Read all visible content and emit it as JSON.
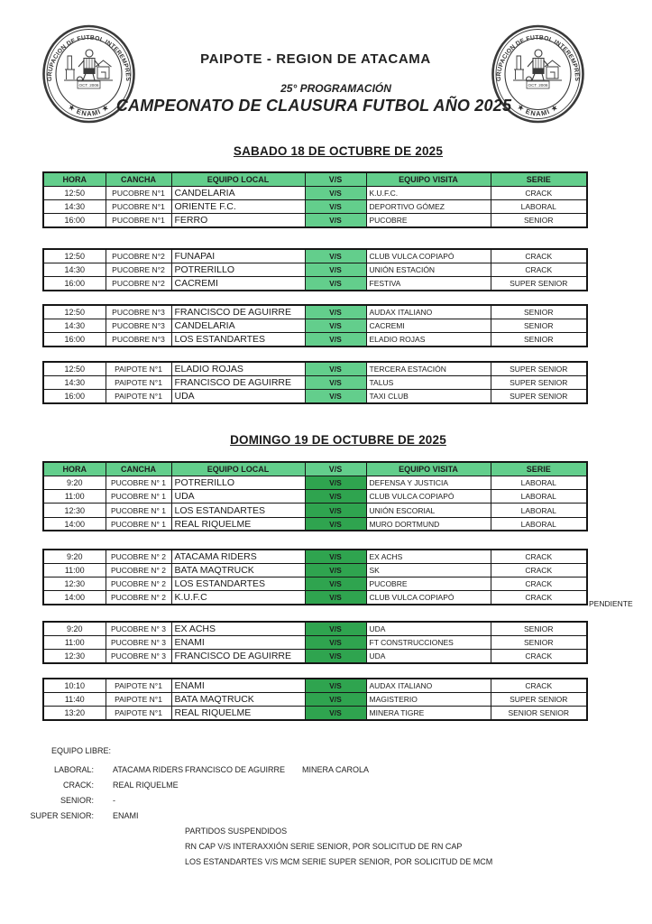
{
  "header": {
    "title": "PAIPOTE - REGION DE ATACAMA",
    "subtitle": "25° PROGRAMACIÓN",
    "championship": "CAMPEONATO DE CLAUSURA FUTBOL AÑO 2025",
    "logo": {
      "ring_text": "AGRUPACION DE FUTBOL INTEREMPRESA",
      "bottom_text": "★ ENAMI ★",
      "date_text": "OCT. 2006"
    }
  },
  "table_headers": [
    "HORA",
    "CANCHA",
    "EQUIPO LOCAL",
    "V/S",
    "EQUIPO VISITA",
    "SERIE"
  ],
  "days": [
    {
      "title": "SABADO 18 DE OCTUBRE DE 2025",
      "tables": [
        {
          "rows": [
            {
              "hora": "12:50",
              "cancha": "PUCOBRE N°1",
              "local": "CANDELARIA",
              "vs": "V/S",
              "visita": "K.U.F.C.",
              "serie": "CRACK"
            },
            {
              "hora": "14:30",
              "cancha": "PUCOBRE N°1",
              "local": "ORIENTE F.C.",
              "vs": "V/S",
              "visita": "DEPORTIVO GÓMEZ",
              "serie": "LABORAL"
            },
            {
              "hora": "16:00",
              "cancha": "PUCOBRE N°1",
              "local": "FERRO",
              "vs": "V/S",
              "visita": "PUCOBRE",
              "serie": "SENIOR"
            }
          ]
        },
        {
          "rows": [
            {
              "hora": "12:50",
              "cancha": "PUCOBRE N°2",
              "local": "FUNAPAI",
              "vs": "V/S",
              "visita": "CLUB VULCA COPIAPÓ",
              "serie": "CRACK"
            },
            {
              "hora": "14:30",
              "cancha": "PUCOBRE N°2",
              "local": "POTRERILLO",
              "vs": "V/S",
              "visita": "UNIÓN ESTACIÓN",
              "serie": "CRACK"
            },
            {
              "hora": "16:00",
              "cancha": "PUCOBRE N°2",
              "local": "CACREMI",
              "vs": "V/S",
              "visita": "FESTIVA",
              "serie": "SUPER SENIOR"
            }
          ]
        },
        {
          "rows": [
            {
              "hora": "12:50",
              "cancha": "PUCOBRE N°3",
              "local": "FRANCISCO DE AGUIRRE",
              "vs": "V/S",
              "visita": "AUDAX ITALIANO",
              "serie": "SENIOR"
            },
            {
              "hora": "14:30",
              "cancha": "PUCOBRE N°3",
              "local": "CANDELARIA",
              "vs": "V/S",
              "visita": "CACREMI",
              "serie": "SENIOR"
            },
            {
              "hora": "16:00",
              "cancha": "PUCOBRE N°3",
              "local": "LOS ESTANDARTES",
              "vs": "V/S",
              "visita": "ELADIO ROJAS",
              "serie": "SENIOR"
            }
          ]
        },
        {
          "rows": [
            {
              "hora": "12:50",
              "cancha": "PAIPOTE N°1",
              "local": "ELADIO ROJAS",
              "vs": "V/S",
              "visita": "TERCERA ESTACIÓN",
              "serie": "SUPER SENIOR"
            },
            {
              "hora": "14:30",
              "cancha": "PAIPOTE N°1",
              "local": "FRANCISCO DE AGUIRRE",
              "vs": "V/S",
              "visita": "TALUS",
              "serie": "SUPER SENIOR"
            },
            {
              "hora": "16:00",
              "cancha": "PAIPOTE N°1",
              "local": "UDA",
              "vs": "V/S",
              "visita": "TAXI CLUB",
              "serie": "SUPER SENIOR"
            }
          ]
        }
      ]
    },
    {
      "title": "DOMINGO 19 DE OCTUBRE DE 2025",
      "tables": [
        {
          "rows": [
            {
              "hora": "9:20",
              "cancha": "PUCOBRE N° 1",
              "local": "POTRERILLO",
              "vs": "V/S",
              "visita": "DEFENSA Y JUSTICIA",
              "serie": "LABORAL"
            },
            {
              "hora": "11:00",
              "cancha": "PUCOBRE N° 1",
              "local": "UDA",
              "vs": "V/S",
              "visita": "CLUB VULCA COPIAPÓ",
              "serie": "LABORAL"
            },
            {
              "hora": "12:30",
              "cancha": "PUCOBRE N° 1",
              "local": "LOS ESTANDARTES",
              "vs": "V/S",
              "visita": "UNIÓN ESCORIAL",
              "serie": "LABORAL"
            },
            {
              "hora": "14:00",
              "cancha": "PUCOBRE N° 1",
              "local": "REAL RIQUELME",
              "vs": "V/S",
              "visita": "MURO DORTMUND",
              "serie": "LABORAL"
            }
          ]
        },
        {
          "rows": [
            {
              "hora": "9:20",
              "cancha": "PUCOBRE N° 2",
              "local": "ATACAMA RIDERS",
              "vs": "V/S",
              "visita": "EX ACHS",
              "serie": "CRACK"
            },
            {
              "hora": "11:00",
              "cancha": "PUCOBRE N° 2",
              "local": "BATA MAQTRUCK",
              "vs": "V/S",
              "visita": "SK",
              "serie": "CRACK"
            },
            {
              "hora": "12:30",
              "cancha": "PUCOBRE N° 2",
              "local": "LOS ESTANDARTES",
              "vs": "V/S",
              "visita": "PUCOBRE",
              "serie": "CRACK"
            },
            {
              "hora": "14:00",
              "cancha": "PUCOBRE N° 2",
              "local": "K.U.F.C",
              "vs": "V/S",
              "visita": "CLUB VULCA COPIAPÓ",
              "serie": "CRACK",
              "note": "PENDIENTE"
            }
          ]
        },
        {
          "rows": [
            {
              "hora": "9:20",
              "cancha": "PUCOBRE N° 3",
              "local": "EX ACHS",
              "vs": "V/S",
              "visita": "UDA",
              "serie": "SENIOR"
            },
            {
              "hora": "11:00",
              "cancha": "PUCOBRE N° 3",
              "local": "ENAMI",
              "vs": "V/S",
              "visita": "FT CONSTRUCCIONES",
              "serie": "SENIOR"
            },
            {
              "hora": "12:30",
              "cancha": "PUCOBRE N° 3",
              "local": "FRANCISCO DE AGUIRRE",
              "vs": "V/S",
              "visita": "UDA",
              "serie": "CRACK"
            }
          ]
        },
        {
          "rows": [
            {
              "hora": "10:10",
              "cancha": "PAIPOTE N°1",
              "local": "ENAMI",
              "vs": "V/S",
              "visita": "AUDAX ITALIANO",
              "serie": "CRACK"
            },
            {
              "hora": "11:40",
              "cancha": "PAIPOTE N°1",
              "local": "BATA MAQTRUCK",
              "vs": "V/S",
              "visita": "MAGISTERIO",
              "serie": "SUPER SENIOR"
            },
            {
              "hora": "13:20",
              "cancha": "PAIPOTE N°1",
              "local": "REAL RIQUELME",
              "vs": "V/S",
              "visita": "MINERA TIGRE",
              "serie": "SENIOR SENIOR"
            }
          ]
        }
      ]
    }
  ],
  "equipo_libre": {
    "title": "EQUIPO LIBRE:",
    "rows": [
      {
        "label": "LABORAL:",
        "teams": [
          "ATACAMA RIDERS",
          "FRANCISCO DE AGUIRRE",
          "MINERA CAROLA"
        ]
      },
      {
        "label": "CRACK:",
        "teams": [
          "REAL RIQUELME"
        ]
      },
      {
        "label": "SENIOR:",
        "teams": [
          "-"
        ]
      },
      {
        "label": "SUPER SENIOR:",
        "teams": [
          "ENAMI"
        ]
      }
    ]
  },
  "suspended": {
    "title": "PARTIDOS SUSPENDIDOS",
    "lines": [
      "RN CAP V/S INTERAXXIÓN SERIE SENIOR, POR SOLICITUD DE RN CAP",
      "LOS ESTANDARTES V/S MCM SERIE SUPER SENIOR, POR SOLICITUD DE MCM"
    ]
  },
  "colors": {
    "header_green": "#63CE8C",
    "vs_saturday": "#63CE8C",
    "vs_sunday": "#2FA44F",
    "border": "#161616"
  }
}
